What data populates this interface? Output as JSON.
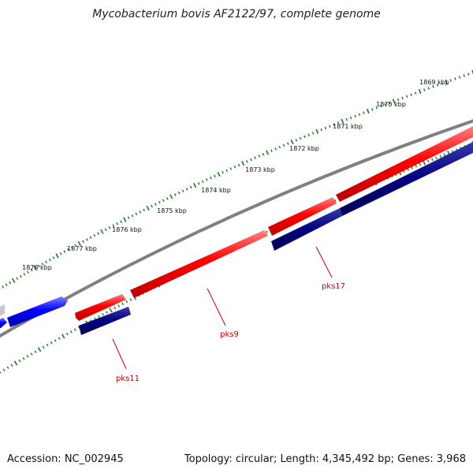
{
  "title": "Mycobacterium bovis AF2122/97, complete genome",
  "footer": {
    "accession": "Accession: NC_002945",
    "stats": "Topology: circular; Length: 4,345,492 bp; Genes: 3,968"
  },
  "ticks": [
    "1869 kbp",
    "1870 kbp",
    "1871 kbp",
    "1872 kbp",
    "1873 kbp",
    "1874 kbp",
    "1875 kbp",
    "1876 kbp",
    "1877 kbp",
    "1878 kbp"
  ],
  "gene_labels": [
    "pks17",
    "pks9",
    "pks11"
  ],
  "colors": {
    "backbone": "#808080",
    "forward_red": "#ff0000",
    "forward_blue": "#0000ff",
    "reverse_navy": "#000080",
    "label_red": "#cc0000",
    "tick_green": "#1a7a1a",
    "text": "#111111"
  }
}
